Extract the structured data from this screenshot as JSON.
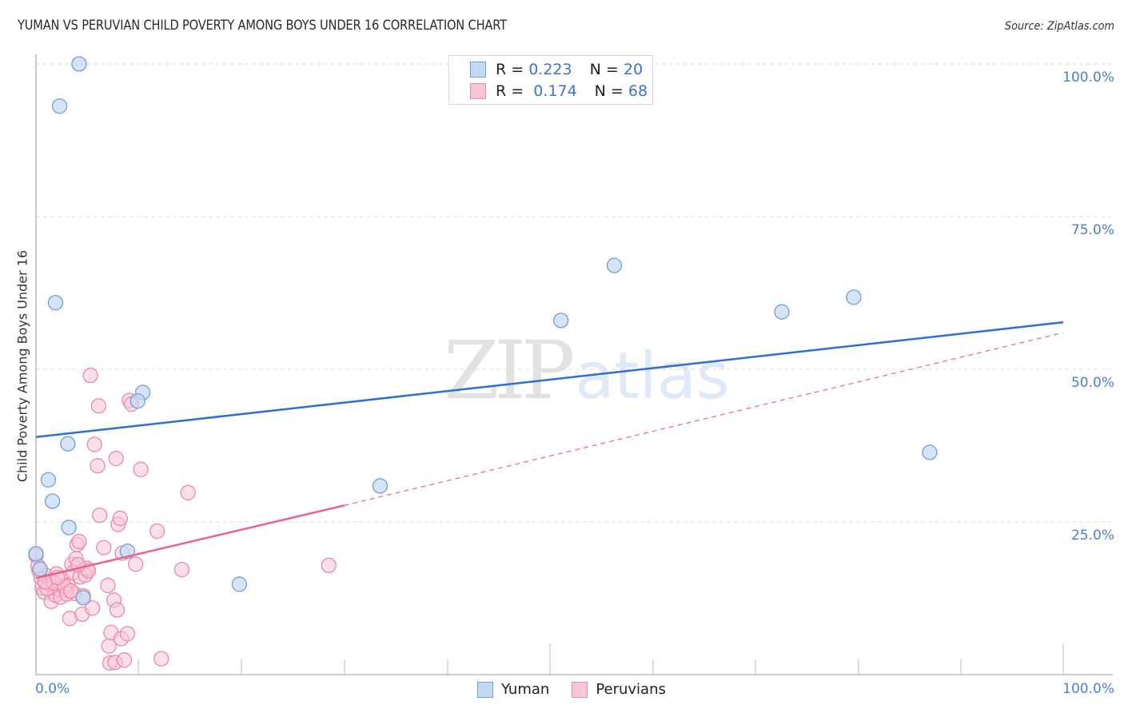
{
  "header": {
    "title": "YUMAN VS PERUVIAN CHILD POVERTY AMONG BOYS UNDER 16 CORRELATION CHART",
    "source": "Source: ZipAtlas.com"
  },
  "axes": {
    "ylabel": "Child Poverty Among Boys Under 16",
    "yticks": [
      "100.0%",
      "75.0%",
      "50.0%",
      "25.0%"
    ],
    "xtick_left": "0.0%",
    "xtick_right": "100.0%"
  },
  "legend": {
    "rows": [
      {
        "series": "Yuman",
        "r_label": "R =",
        "r_value": "0.223",
        "n_label": "N =",
        "n_value": "20"
      },
      {
        "series": "Peruvians",
        "r_label": "R =",
        "r_value": "0.174",
        "n_label": "N =",
        "n_value": "68"
      }
    ],
    "bottom": [
      {
        "label": "Yuman"
      },
      {
        "label": "Peruvians"
      }
    ]
  },
  "watermark": {
    "zip": "ZIP",
    "atlas": "atlas"
  },
  "colors": {
    "yuman_fill": "#c5d9f5",
    "yuman_stroke": "#6f9ee0",
    "yuman_line": "#2f6fd4",
    "peruvian_fill": "#f9c6d5",
    "peruvian_stroke": "#e98aa8",
    "peruvian_line": "#e8648f",
    "tick_label": "#4a7fd4",
    "grid": "#dddddd"
  },
  "chart_data": {
    "type": "scatter",
    "title": "YUMAN VS PERUVIAN CHILD POVERTY AMONG BOYS UNDER 16 CORRELATION CHART",
    "xlabel": "",
    "ylabel": "Child Poverty Among Boys Under 16",
    "xlim": [
      0,
      100
    ],
    "ylim": [
      0,
      100
    ],
    "x_tick_labels": [
      "0.0%",
      "100.0%"
    ],
    "y_tick_labels": [
      "25.0%",
      "50.0%",
      "75.0%",
      "100.0%"
    ],
    "grid": "horizontal dashed",
    "legend_position": "top-center and bottom-center",
    "series": [
      {
        "name": "Yuman",
        "r": 0.223,
        "n": 20,
        "points": [
          [
            4.2,
            100.0
          ],
          [
            2.3,
            93.1
          ],
          [
            1.9,
            60.9
          ],
          [
            10.4,
            46.2
          ],
          [
            9.9,
            44.8
          ],
          [
            3.1,
            37.8
          ],
          [
            1.2,
            31.9
          ],
          [
            1.6,
            28.4
          ],
          [
            3.2,
            24.1
          ],
          [
            8.9,
            20.2
          ],
          [
            0.0,
            19.8
          ],
          [
            0.4,
            17.3
          ],
          [
            4.6,
            12.6
          ],
          [
            19.8,
            14.8
          ],
          [
            33.5,
            30.9
          ],
          [
            51.1,
            58.0
          ],
          [
            56.3,
            67.0
          ],
          [
            72.6,
            59.4
          ],
          [
            79.6,
            61.8
          ],
          [
            87.0,
            36.4
          ]
        ],
        "trend": {
          "x": [
            0,
            100
          ],
          "y": [
            38.9,
            57.7
          ]
        }
      },
      {
        "name": "Peruvians",
        "r": 0.174,
        "n": 68,
        "points": [
          [
            0.0,
            19.5
          ],
          [
            0.3,
            17.0
          ],
          [
            0.5,
            15.8
          ],
          [
            0.6,
            14.2
          ],
          [
            0.8,
            13.5
          ],
          [
            1.0,
            16.2
          ],
          [
            1.3,
            14.9
          ],
          [
            1.5,
            12.0
          ],
          [
            1.6,
            15.5
          ],
          [
            1.9,
            13.0
          ],
          [
            2.0,
            16.5
          ],
          [
            2.2,
            14.0
          ],
          [
            2.4,
            12.7
          ],
          [
            2.6,
            15.6
          ],
          [
            2.9,
            13.9
          ],
          [
            3.1,
            14.6
          ],
          [
            3.3,
            9.2
          ],
          [
            3.5,
            18.1
          ],
          [
            3.6,
            16.7
          ],
          [
            3.7,
            13.3
          ],
          [
            3.9,
            19.0
          ],
          [
            4.0,
            21.3
          ],
          [
            4.2,
            21.8
          ],
          [
            4.3,
            16.0
          ],
          [
            4.5,
            9.9
          ],
          [
            4.6,
            12.9
          ],
          [
            4.8,
            16.3
          ],
          [
            5.0,
            17.4
          ],
          [
            5.1,
            17.0
          ],
          [
            5.3,
            49.0
          ],
          [
            5.5,
            10.9
          ],
          [
            5.7,
            37.7
          ],
          [
            6.0,
            34.2
          ],
          [
            6.1,
            44.0
          ],
          [
            6.2,
            26.1
          ],
          [
            6.6,
            20.8
          ],
          [
            7.0,
            14.6
          ],
          [
            7.1,
            4.7
          ],
          [
            7.2,
            1.9
          ],
          [
            7.3,
            6.9
          ],
          [
            7.6,
            12.2
          ],
          [
            7.7,
            2.0
          ],
          [
            7.8,
            35.4
          ],
          [
            7.9,
            10.6
          ],
          [
            8.0,
            24.6
          ],
          [
            8.2,
            25.6
          ],
          [
            8.3,
            5.9
          ],
          [
            8.4,
            19.9
          ],
          [
            8.6,
            2.4
          ],
          [
            8.9,
            6.7
          ],
          [
            9.1,
            44.9
          ],
          [
            9.3,
            44.3
          ],
          [
            9.7,
            18.1
          ],
          [
            10.2,
            33.6
          ],
          [
            11.8,
            23.5
          ],
          [
            12.2,
            2.6
          ],
          [
            14.2,
            17.2
          ],
          [
            14.8,
            29.8
          ],
          [
            28.5,
            17.9
          ],
          [
            0.2,
            17.8
          ],
          [
            1.1,
            14.1
          ],
          [
            1.7,
            15.0
          ],
          [
            2.8,
            14.4
          ],
          [
            3.0,
            13.2
          ],
          [
            0.9,
            15.2
          ],
          [
            2.1,
            15.9
          ],
          [
            4.1,
            18.0
          ],
          [
            3.4,
            13.7
          ]
        ],
        "trend_solid": {
          "x": [
            0,
            30
          ],
          "y": [
            15.8,
            27.7
          ]
        },
        "trend_dashed": {
          "x": [
            30,
            100
          ],
          "y": [
            27.7,
            56.0
          ]
        }
      }
    ]
  }
}
